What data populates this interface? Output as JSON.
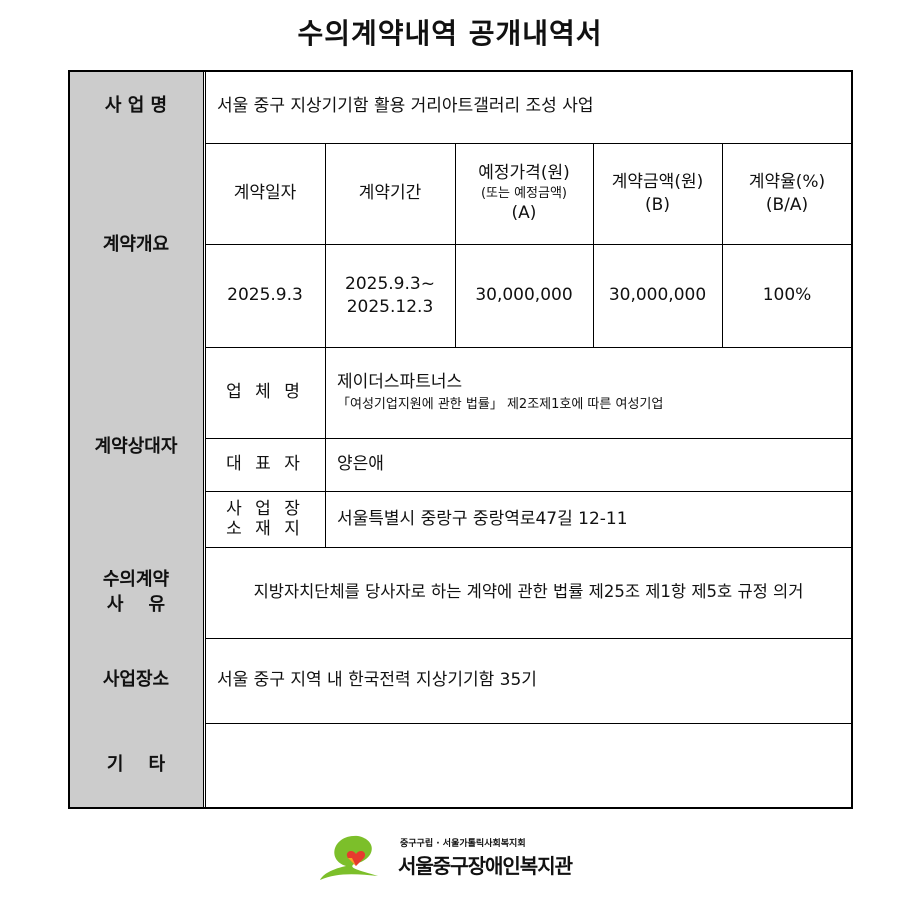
{
  "title": "수의계약내역 공개내역서",
  "project": {
    "label": "사 업 명",
    "value": "서울 중구 지상기기함 활용 거리아트갤러리 조성 사업"
  },
  "overview": {
    "label": "계약개요",
    "headers": [
      {
        "line1": "계약일자"
      },
      {
        "line1": "계약기간"
      },
      {
        "line1": "예정가격(원)",
        "line2": "(또는 예정금액)",
        "line3": "(A)"
      },
      {
        "line1": "계약금액(원)",
        "line2": "(B)"
      },
      {
        "line1": "계약율(%)",
        "line2": "(B/A)"
      }
    ],
    "values": {
      "date": "2025.9.3",
      "period1": "2025.9.3~",
      "period2": "2025.12.3",
      "estimated": "30,000,000",
      "amount": "30,000,000",
      "rate": "100%"
    }
  },
  "contractor": {
    "label": "계약상대자",
    "company_label": "업 체 명",
    "company": "제이더스파트너스",
    "company_note": "「여성기업지원에 관한 법률」 제2조제1호에 따른 여성기업",
    "rep_label": "대 표 자",
    "rep": "양은애",
    "addr_label1": "사 업 장",
    "addr_label2": "소 재 지",
    "addr": "서울특별시 중랑구 중랑역로47길 12-11"
  },
  "reason": {
    "label1": "수의계약",
    "label2": "사    유",
    "value": "지방자치단체를 당사자로 하는 계약에 관한 법률 제25조 제1항 제5호 규정 의거"
  },
  "location": {
    "label": "사업장소",
    "value": "서울 중구 지역 내 한국전력 지상기기함 35기"
  },
  "etc": {
    "label": "기    타",
    "value": ""
  },
  "logo": {
    "sub": "중구구립 · 서울가톨릭사회복지회",
    "name": "서울중구장애인복지관",
    "colors": [
      "#7cbf2a",
      "#e63a2e",
      "#f5a623"
    ]
  }
}
